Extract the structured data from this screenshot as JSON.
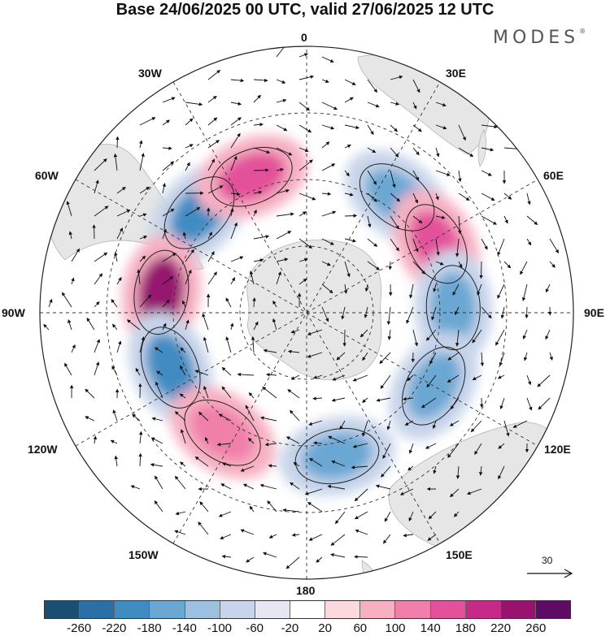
{
  "title": "Base 24/06/2025 00 UTC, valid 27/06/2025 12 UTC",
  "brand": "MODES",
  "brand_mark": "®",
  "longitude_labels": {
    "n0": "0",
    "e30": "30E",
    "e60": "60E",
    "e90": "90E",
    "e120": "120E",
    "e150": "150E",
    "s180": "180",
    "w150": "150W",
    "w120": "120W",
    "w90": "90W",
    "w60": "60W",
    "w30": "30W"
  },
  "wind_scale": {
    "label": "30"
  },
  "colorbar": {
    "colors": [
      "#1b4f72",
      "#2a6fa6",
      "#3f8cc2",
      "#6aa7d3",
      "#9dbfe0",
      "#c7d4ea",
      "#e7e6f3",
      "#ffffff",
      "#fbd9de",
      "#f6b0c2",
      "#f07fa9",
      "#e3519a",
      "#c62a86",
      "#96136f",
      "#5e0b63"
    ],
    "tick_labels": [
      "-260",
      "-220",
      "-180",
      "-140",
      "-100",
      "-60",
      "-20",
      "20",
      "60",
      "100",
      "140",
      "180",
      "220",
      "260"
    ]
  },
  "anomaly_centers": [
    {
      "lon": -47,
      "sign": "negative",
      "level": "-180"
    },
    {
      "lon": -82,
      "sign": "positive",
      "level": "220"
    },
    {
      "lon": -112,
      "sign": "negative",
      "level": "-180"
    },
    {
      "lon": 38,
      "sign": "negative",
      "level": "-140"
    },
    {
      "lon": 62,
      "sign": "positive",
      "level": "140"
    },
    {
      "lon": 88,
      "sign": "negative",
      "level": "-140"
    },
    {
      "lon": -22,
      "sign": "positive",
      "level": "140"
    },
    {
      "lon": 120,
      "sign": "negative",
      "level": "-140"
    },
    {
      "lon": 168,
      "sign": "negative",
      "level": "-140"
    },
    {
      "lon": -145,
      "sign": "positive",
      "level": "100"
    }
  ]
}
